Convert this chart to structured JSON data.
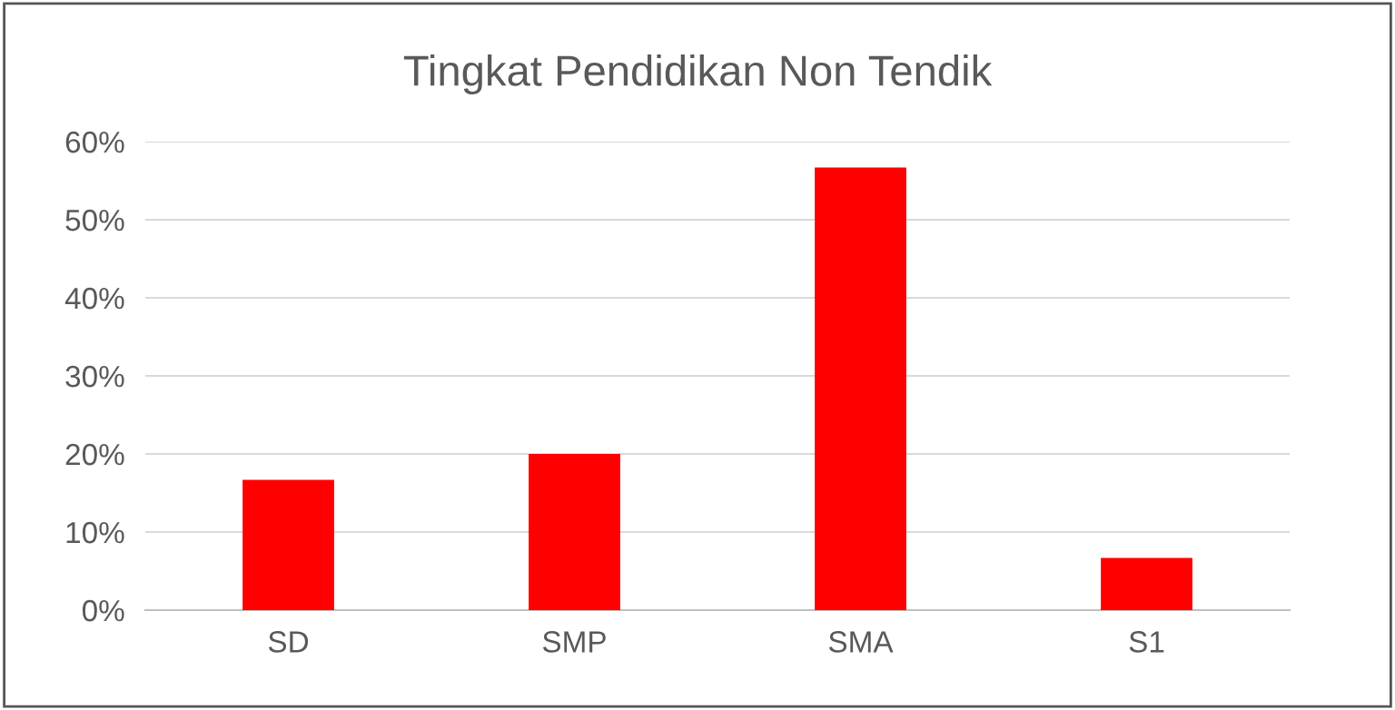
{
  "chart_data": {
    "type": "bar",
    "title": "Tingkat Pendidikan Non Tendik",
    "categories": [
      "SD",
      "SMP",
      "SMA",
      "S1"
    ],
    "values": [
      16.7,
      20,
      56.7,
      6.7
    ],
    "color": "#ff0000",
    "ylim": [
      0,
      60
    ],
    "yticks": [
      {
        "value": 0,
        "label": "0%"
      },
      {
        "value": 10,
        "label": "10%"
      },
      {
        "value": 20,
        "label": "20%"
      },
      {
        "value": 30,
        "label": "30%"
      },
      {
        "value": 40,
        "label": "40%"
      },
      {
        "value": 50,
        "label": "50%"
      },
      {
        "value": 60,
        "label": "60%"
      }
    ],
    "grid": "y",
    "legend": false
  }
}
